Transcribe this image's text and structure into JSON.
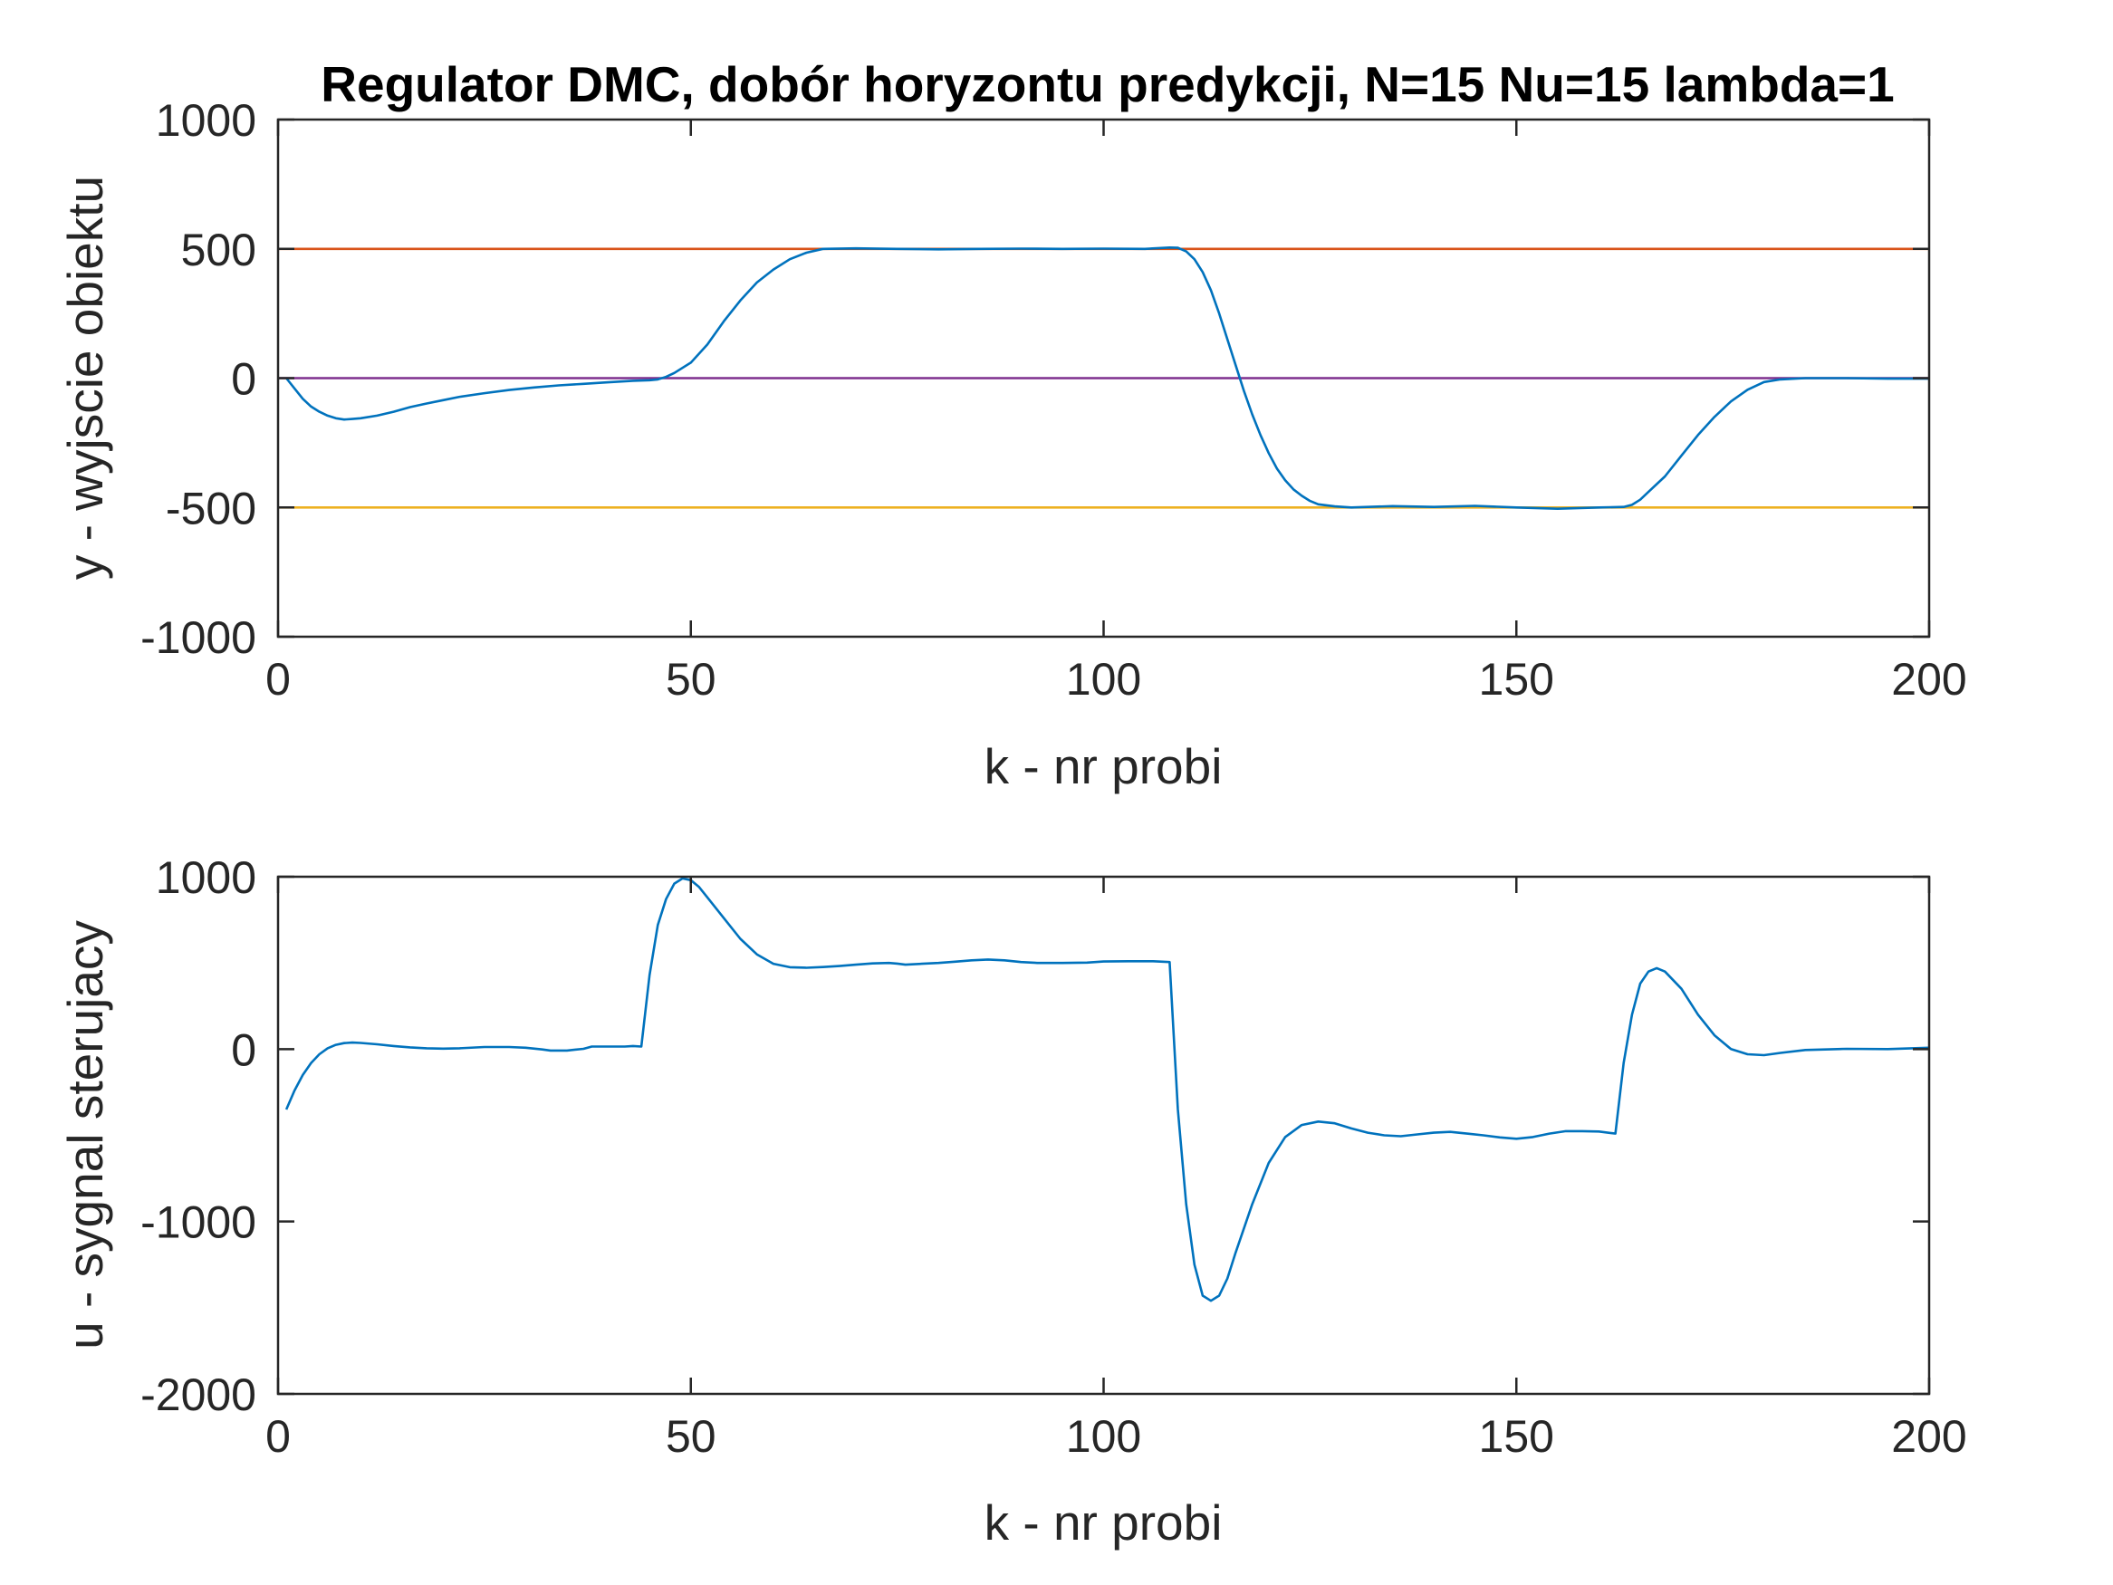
{
  "chart_data": [
    {
      "type": "line",
      "title": "Regulator DMC, dobór horyzontu predykcji, N=15 Nu=15 lambda=1",
      "xlabel": "k - nr probi",
      "ylabel": "y - wyjscie obiektu",
      "xlim": [
        0,
        200
      ],
      "ylim": [
        -1000,
        1000
      ],
      "xticks": [
        "0",
        "50",
        "100",
        "150",
        "200"
      ],
      "yticks": [
        "1000",
        "500",
        "0",
        "-500",
        "-1000"
      ],
      "grid": false,
      "series": [
        {
          "color": "#0072BD",
          "points": [
            [
              1,
              0
            ],
            [
              2,
              -40
            ],
            [
              3,
              -80
            ],
            [
              4,
              -110
            ],
            [
              5,
              -130
            ],
            [
              6,
              -145
            ],
            [
              7,
              -155
            ],
            [
              8,
              -160
            ],
            [
              9,
              -158
            ],
            [
              10,
              -155
            ],
            [
              12,
              -145
            ],
            [
              14,
              -130
            ],
            [
              16,
              -112
            ],
            [
              18,
              -98
            ],
            [
              20,
              -85
            ],
            [
              22,
              -72
            ],
            [
              25,
              -58
            ],
            [
              28,
              -46
            ],
            [
              31,
              -36
            ],
            [
              34,
              -28
            ],
            [
              37,
              -22
            ],
            [
              40,
              -16
            ],
            [
              43,
              -10
            ],
            [
              45,
              -8
            ],
            [
              46,
              -5
            ],
            [
              47,
              5
            ],
            [
              48,
              20
            ],
            [
              50,
              60
            ],
            [
              52,
              130
            ],
            [
              54,
              220
            ],
            [
              56,
              300
            ],
            [
              58,
              370
            ],
            [
              60,
              420
            ],
            [
              62,
              460
            ],
            [
              64,
              485
            ],
            [
              66,
              500
            ],
            [
              70,
              502
            ],
            [
              75,
              500
            ],
            [
              80,
              498
            ],
            [
              85,
              500
            ],
            [
              90,
              501
            ],
            [
              95,
              500
            ],
            [
              100,
              501
            ],
            [
              105,
              500
            ],
            [
              108,
              505
            ],
            [
              109,
              504
            ],
            [
              110,
              490
            ],
            [
              111,
              460
            ],
            [
              112,
              410
            ],
            [
              113,
              340
            ],
            [
              114,
              250
            ],
            [
              115,
              150
            ],
            [
              116,
              50
            ],
            [
              117,
              -50
            ],
            [
              118,
              -140
            ],
            [
              119,
              -220
            ],
            [
              120,
              -290
            ],
            [
              121,
              -350
            ],
            [
              122,
              -395
            ],
            [
              123,
              -430
            ],
            [
              124,
              -455
            ],
            [
              125,
              -475
            ],
            [
              126,
              -488
            ],
            [
              128,
              -496
            ],
            [
              130,
              -500
            ],
            [
              135,
              -495
            ],
            [
              140,
              -498
            ],
            [
              145,
              -494
            ],
            [
              150,
              -500
            ],
            [
              155,
              -505
            ],
            [
              160,
              -500
            ],
            [
              163,
              -498
            ],
            [
              164,
              -490
            ],
            [
              165,
              -470
            ],
            [
              166,
              -440
            ],
            [
              168,
              -380
            ],
            [
              170,
              -300
            ],
            [
              172,
              -220
            ],
            [
              174,
              -150
            ],
            [
              176,
              -90
            ],
            [
              178,
              -45
            ],
            [
              180,
              -15
            ],
            [
              182,
              -5
            ],
            [
              185,
              0
            ],
            [
              190,
              0
            ],
            [
              195,
              -2
            ],
            [
              200,
              -2
            ]
          ]
        },
        {
          "color": "#D95319",
          "points": [
            [
              0,
              500
            ],
            [
              200,
              500
            ]
          ]
        },
        {
          "color": "#EDB120",
          "points": [
            [
              0,
              -500
            ],
            [
              200,
              -500
            ]
          ]
        },
        {
          "color": "#7E2F8E",
          "points": [
            [
              0,
              0
            ],
            [
              200,
              0
            ]
          ]
        }
      ]
    },
    {
      "type": "line",
      "title": "",
      "xlabel": "k - nr probi",
      "ylabel": "u - sygnal sterujacy",
      "xlim": [
        0,
        200
      ],
      "ylim": [
        -2000,
        1000
      ],
      "xticks": [
        "0",
        "50",
        "100",
        "150",
        "200"
      ],
      "yticks": [
        "1000",
        "0",
        "-1000",
        "-2000"
      ],
      "grid": false,
      "series": [
        {
          "color": "#0072BD",
          "points": [
            [
              1,
              -350
            ],
            [
              2,
              -240
            ],
            [
              3,
              -150
            ],
            [
              4,
              -80
            ],
            [
              5,
              -30
            ],
            [
              6,
              5
            ],
            [
              7,
              25
            ],
            [
              8,
              35
            ],
            [
              9,
              38
            ],
            [
              10,
              36
            ],
            [
              12,
              28
            ],
            [
              14,
              18
            ],
            [
              16,
              10
            ],
            [
              18,
              5
            ],
            [
              20,
              3
            ],
            [
              22,
              5
            ],
            [
              25,
              12
            ],
            [
              28,
              12
            ],
            [
              30,
              8
            ],
            [
              32,
              -2
            ],
            [
              33,
              -8
            ],
            [
              35,
              -8
            ],
            [
              37,
              2
            ],
            [
              38,
              15
            ],
            [
              40,
              15
            ],
            [
              42,
              15
            ],
            [
              43,
              18
            ],
            [
              44,
              15
            ],
            [
              45,
              430
            ],
            [
              46,
              720
            ],
            [
              47,
              870
            ],
            [
              48,
              960
            ],
            [
              49,
              990
            ],
            [
              50,
              980
            ],
            [
              51,
              940
            ],
            [
              52,
              880
            ],
            [
              54,
              760
            ],
            [
              56,
              640
            ],
            [
              58,
              550
            ],
            [
              60,
              495
            ],
            [
              62,
              475
            ],
            [
              64,
              472
            ],
            [
              66,
              476
            ],
            [
              68,
              482
            ],
            [
              70,
              490
            ],
            [
              72,
              497
            ],
            [
              74,
              500
            ],
            [
              75,
              496
            ],
            [
              76,
              490
            ],
            [
              78,
              495
            ],
            [
              80,
              500
            ],
            [
              82,
              507
            ],
            [
              84,
              515
            ],
            [
              86,
              520
            ],
            [
              88,
              515
            ],
            [
              90,
              505
            ],
            [
              92,
              500
            ],
            [
              95,
              500
            ],
            [
              98,
              502
            ],
            [
              100,
              508
            ],
            [
              103,
              510
            ],
            [
              106,
              510
            ],
            [
              108,
              505
            ],
            [
              109,
              -350
            ],
            [
              110,
              -900
            ],
            [
              111,
              -1250
            ],
            [
              112,
              -1430
            ],
            [
              113,
              -1460
            ],
            [
              114,
              -1430
            ],
            [
              115,
              -1330
            ],
            [
              116,
              -1180
            ],
            [
              118,
              -900
            ],
            [
              120,
              -660
            ],
            [
              122,
              -510
            ],
            [
              124,
              -440
            ],
            [
              126,
              -420
            ],
            [
              128,
              -430
            ],
            [
              130,
              -460
            ],
            [
              132,
              -485
            ],
            [
              134,
              -500
            ],
            [
              136,
              -505
            ],
            [
              138,
              -495
            ],
            [
              140,
              -485
            ],
            [
              142,
              -480
            ],
            [
              144,
              -490
            ],
            [
              146,
              -500
            ],
            [
              148,
              -512
            ],
            [
              150,
              -520
            ],
            [
              152,
              -510
            ],
            [
              154,
              -490
            ],
            [
              156,
              -476
            ],
            [
              158,
              -476
            ],
            [
              160,
              -478
            ],
            [
              162,
              -490
            ],
            [
              163,
              -80
            ],
            [
              164,
              200
            ],
            [
              165,
              380
            ],
            [
              166,
              450
            ],
            [
              167,
              470
            ],
            [
              168,
              450
            ],
            [
              170,
              350
            ],
            [
              172,
              200
            ],
            [
              174,
              80
            ],
            [
              176,
              0
            ],
            [
              178,
              -30
            ],
            [
              180,
              -35
            ],
            [
              182,
              -22
            ],
            [
              185,
              -5
            ],
            [
              190,
              2
            ],
            [
              195,
              0
            ],
            [
              200,
              8
            ]
          ]
        }
      ]
    }
  ]
}
